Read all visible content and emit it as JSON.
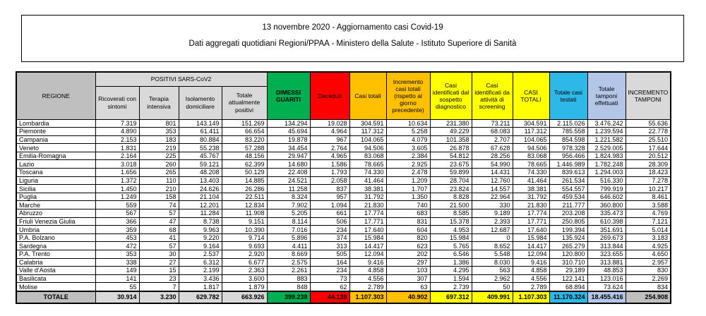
{
  "header_box": {
    "line1": "13 novembre 2020 - Aggiornamento casi Covid-19",
    "line2": "Dati aggregati quotidiani Regioni/PPAA - Ministero della Salute - Istituto Superiore di Sanità"
  },
  "colors": {
    "green": "#00B050",
    "red": "#FF0000",
    "orange": "#FFC000",
    "yellow": "#FFFF00",
    "cyan": "#2EB8E8",
    "periwinkle": "#B4C6E7",
    "gray_dark": "#BFBFBF",
    "gray_light": "#D9D9D9"
  },
  "table": {
    "group_headers": {
      "regione": "REGIONE",
      "positivi": "POSITIVI SARS-CoV2"
    },
    "columns": [
      {
        "label": "Ricoverati con sintomi",
        "header_bg": "#D9D9D9",
        "total_bg": "#D9D9D9"
      },
      {
        "label": "Terapia intensiva",
        "header_bg": "#D9D9D9",
        "total_bg": "#D9D9D9"
      },
      {
        "label": "Isolamento domiciliare",
        "header_bg": "#D9D9D9",
        "total_bg": "#D9D9D9"
      },
      {
        "label": "Totale attualmente positivi",
        "header_bg": "#D9D9D9",
        "total_bg": "#D9D9D9"
      },
      {
        "label": "DIMESSI GUARITI",
        "header_bg": "#00B050",
        "total_bg": "#00B050",
        "header_bold": true
      },
      {
        "label": "Deceduti",
        "header_bg": "#FF0000",
        "total_bg": "#FF0000"
      },
      {
        "label": "Casi totali",
        "header_bg": "#FFC000",
        "total_bg": "#FFC000"
      },
      {
        "label": "Incremento casi totali (rispetto al giorno precedente)",
        "header_bg": "#FFC000",
        "total_bg": "#FFC000"
      },
      {
        "label": "Casi identificati dal sospetto diagnostico",
        "header_bg": "#FFFF00",
        "total_bg": "#FFFF00"
      },
      {
        "label": "Casi identificati da attività di screening",
        "header_bg": "#FFFF00",
        "total_bg": "#FFFF00"
      },
      {
        "label": "CASI TOTALI",
        "header_bg": "#FFFF00",
        "total_bg": "#FFFF00"
      },
      {
        "label": "Totale casi testati",
        "header_bg": "#2EB8E8",
        "total_bg": "#2EB8E8"
      },
      {
        "label": "Totale tamponi effettuati",
        "header_bg": "#B4C6E7",
        "total_bg": "#B4C6E7"
      },
      {
        "label": "INCREMENTO TAMPONI",
        "header_bg": "#D9D9D9",
        "total_bg": "#BFBFBF"
      }
    ],
    "rows": [
      {
        "regione": "Lombardia",
        "values": [
          "7.319",
          "801",
          "143.149",
          "151.269",
          "134.294",
          "19.028",
          "304.591",
          "10.634",
          "231.380",
          "73.211",
          "304.591",
          "2.115.026",
          "3.476.242",
          "55.636"
        ]
      },
      {
        "regione": "Piemonte",
        "values": [
          "4.890",
          "353",
          "61.411",
          "66.654",
          "45.694",
          "4.964",
          "117.312",
          "5.258",
          "49.229",
          "68.083",
          "117.312",
          "785.558",
          "1.239.594",
          "22.778"
        ]
      },
      {
        "regione": "Campania",
        "values": [
          "2.153",
          "183",
          "80.884",
          "83.220",
          "19.878",
          "967",
          "104.065",
          "4.079",
          "101.358",
          "2.707",
          "104.065",
          "854.598",
          "1.221.582",
          "25.510"
        ]
      },
      {
        "regione": "Veneto",
        "values": [
          "1.831",
          "219",
          "55.238",
          "57.288",
          "34.454",
          "2.764",
          "94.506",
          "3.605",
          "26.878",
          "67.628",
          "94.506",
          "978.328",
          "2.529.005",
          "17.644"
        ]
      },
      {
        "regione": "Emilia-Romagna",
        "values": [
          "2.164",
          "225",
          "45.767",
          "48.156",
          "29.947",
          "4.965",
          "83.068",
          "2.384",
          "54.812",
          "28.256",
          "83.068",
          "956.466",
          "1.824.983",
          "20.512"
        ]
      },
      {
        "regione": "Lazio",
        "values": [
          "3.018",
          "260",
          "59.121",
          "62.399",
          "14.680",
          "1.586",
          "78.665",
          "2.925",
          "23.675",
          "54.990",
          "78.665",
          "1.446.989",
          "1.782.248",
          "28.309"
        ]
      },
      {
        "regione": "Toscana",
        "values": [
          "1.656",
          "265",
          "48.208",
          "50.129",
          "22.408",
          "1.793",
          "74.330",
          "2.478",
          "59.899",
          "14.431",
          "74.330",
          "839.613",
          "1.294.003",
          "18.423"
        ]
      },
      {
        "regione": "Liguria",
        "values": [
          "1.372",
          "110",
          "13.403",
          "14.885",
          "24.521",
          "2.058",
          "41.464",
          "1.209",
          "28.704",
          "12.760",
          "41.464",
          "261.534",
          "516.330",
          "7.278"
        ]
      },
      {
        "regione": "Sicilia",
        "values": [
          "1.450",
          "210",
          "24.626",
          "26.286",
          "11.258",
          "837",
          "38.381",
          "1.707",
          "23.824",
          "14.557",
          "38.381",
          "554.557",
          "799.919",
          "10.217"
        ]
      },
      {
        "regione": "Puglia",
        "values": [
          "1.249",
          "158",
          "21.104",
          "22.511",
          "8.324",
          "957",
          "31.792",
          "1.350",
          "8.828",
          "22.964",
          "31.792",
          "459.534",
          "646.602",
          "8.461"
        ]
      },
      {
        "regione": "Marche",
        "values": [
          "559",
          "74",
          "12.201",
          "12.834",
          "7.902",
          "1.094",
          "21.830",
          "740",
          "21.500",
          "330",
          "21.830",
          "211.777",
          "360.800",
          "3.588"
        ]
      },
      {
        "regione": "Abruzzo",
        "values": [
          "567",
          "57",
          "11.284",
          "11.908",
          "5.205",
          "661",
          "17.774",
          "683",
          "8.585",
          "9.189",
          "17.774",
          "203.208",
          "335.473",
          "4.769"
        ]
      },
      {
        "regione": "Friuli Venezia Giulia",
        "values": [
          "366",
          "47",
          "8.738",
          "9.151",
          "8.114",
          "506",
          "17.771",
          "831",
          "15.378",
          "2.393",
          "17.771",
          "250.805",
          "610.398",
          "7.121"
        ]
      },
      {
        "regione": "Umbria",
        "values": [
          "359",
          "68",
          "9.963",
          "10.390",
          "7.016",
          "234",
          "17.640",
          "604",
          "4.953",
          "12.687",
          "17.640",
          "199.394",
          "351.691",
          "5.014"
        ]
      },
      {
        "regione": "P.A. Bolzano",
        "values": [
          "453",
          "41",
          "9.220",
          "9.714",
          "5.896",
          "374",
          "15.984",
          "820",
          "15.984",
          "0",
          "15.984",
          "135.924",
          "269.673",
          "3.183"
        ]
      },
      {
        "regione": "Sardegna",
        "values": [
          "472",
          "57",
          "9.164",
          "9.693",
          "4.411",
          "313",
          "14.417",
          "623",
          "5.765",
          "8.652",
          "14.417",
          "265.279",
          "313.844",
          "4.925"
        ]
      },
      {
        "regione": "P.A. Trento",
        "values": [
          "353",
          "30",
          "2.537",
          "2.920",
          "8.669",
          "505",
          "12.094",
          "202",
          "6.546",
          "5.548",
          "12.094",
          "120.800",
          "323.655",
          "4.650"
        ]
      },
      {
        "regione": "Calabria",
        "values": [
          "338",
          "27",
          "6.312",
          "6.677",
          "2.575",
          "164",
          "9.416",
          "297",
          "1.386",
          "8.030",
          "9.416",
          "310.710",
          "313.881",
          "2.957"
        ]
      },
      {
        "regione": "Valle d'Aosta",
        "values": [
          "149",
          "15",
          "2.199",
          "2.363",
          "2.261",
          "234",
          "4.858",
          "103",
          "4.295",
          "563",
          "4.858",
          "29.189",
          "48.853",
          "830"
        ]
      },
      {
        "regione": "Basilicata",
        "values": [
          "141",
          "23",
          "3.436",
          "3.600",
          "883",
          "73",
          "4.556",
          "307",
          "1.594",
          "2.962",
          "4.556",
          "122.141",
          "123.016",
          "2.269"
        ]
      },
      {
        "regione": "Molise",
        "values": [
          "55",
          "7",
          "1.817",
          "1.879",
          "848",
          "62",
          "2.789",
          "63",
          "2.739",
          "50",
          "2.789",
          "68.894",
          "73.624",
          "834"
        ]
      }
    ],
    "totale": {
      "label": "TOTALE",
      "values": [
        "30.914",
        "3.230",
        "629.782",
        "663.926",
        "399.238",
        "44.139",
        "1.107.303",
        "40.902",
        "697.312",
        "409.991",
        "1.107.303",
        "11.170.324",
        "18.455.416",
        "254.908"
      ]
    }
  }
}
